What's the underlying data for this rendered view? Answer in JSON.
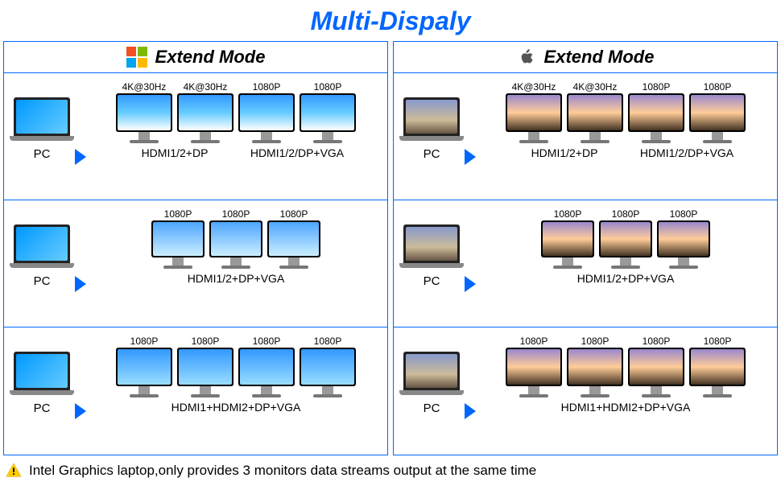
{
  "title": {
    "text": "Multi-Dispaly",
    "color": "#0066ff"
  },
  "border_color": "#0066ff",
  "arrow_color": "#0066ff",
  "columns": [
    {
      "os": "windows",
      "header": "Extend Mode",
      "laptop_bg": "linear-gradient(135deg,#0099ff,#66ccff)",
      "win_colors": [
        "#f25022",
        "#7fba00",
        "#00a4ef",
        "#ffb900"
      ],
      "rows": [
        {
          "groups": [
            {
              "monitors": [
                {
                  "label": "4K@30Hz",
                  "bg": "linear-gradient(180deg,#3399ff 0%,#66ccff 50%,#fff 100%)"
                },
                {
                  "label": "4K@30Hz",
                  "bg": "linear-gradient(180deg,#3399ff 0%,#66ccff 50%,#fff 100%)"
                }
              ],
              "port": "HDMI1/2+DP"
            },
            {
              "monitors": [
                {
                  "label": "1080P",
                  "bg": "linear-gradient(180deg,#3399ff 0%,#66ccff 50%,#fff 100%)"
                },
                {
                  "label": "1080P",
                  "bg": "linear-gradient(180deg,#3399ff 0%,#66ccff 50%,#fff 100%)"
                }
              ],
              "port": "HDMI1/2/DP+VGA"
            }
          ]
        },
        {
          "groups": [
            {
              "monitors": [
                {
                  "label": "1080P",
                  "bg": "linear-gradient(180deg,#4da6ff,#cceeff)"
                },
                {
                  "label": "1080P",
                  "bg": "linear-gradient(180deg,#4da6ff,#cceeff)"
                },
                {
                  "label": "1080P",
                  "bg": "linear-gradient(180deg,#4da6ff,#cceeff)"
                }
              ],
              "port": "HDMI1/2+DP+VGA"
            }
          ]
        },
        {
          "groups": [
            {
              "monitors": [
                {
                  "label": "1080P",
                  "bg": "linear-gradient(180deg,#3399ff,#99ddff)"
                },
                {
                  "label": "1080P",
                  "bg": "linear-gradient(180deg,#3399ff,#99ddff)"
                },
                {
                  "label": "1080P",
                  "bg": "linear-gradient(180deg,#3399ff,#99ddff)"
                },
                {
                  "label": "1080P",
                  "bg": "linear-gradient(180deg,#3399ff,#99ddff)"
                }
              ],
              "port": "HDMI1+HDMI2+DP+VGA"
            }
          ]
        }
      ]
    },
    {
      "os": "mac",
      "header": "Extend Mode",
      "laptop_bg": "linear-gradient(180deg,#8899cc 0%,#ccbb99 60%,#665544 100%)",
      "mac_color": "#555",
      "rows": [
        {
          "groups": [
            {
              "monitors": [
                {
                  "label": "4K@30Hz",
                  "bg": "linear-gradient(180deg,#9988cc 0%,#ffcc99 50%,#443322 100%)"
                },
                {
                  "label": "4K@30Hz",
                  "bg": "linear-gradient(180deg,#9988cc 0%,#ffcc99 50%,#443322 100%)"
                }
              ],
              "port": "HDMI1/2+DP"
            },
            {
              "monitors": [
                {
                  "label": "1080P",
                  "bg": "linear-gradient(180deg,#9988cc 0%,#ffcc99 50%,#443322 100%)"
                },
                {
                  "label": "1080P",
                  "bg": "linear-gradient(180deg,#9988cc 0%,#ffcc99 50%,#443322 100%)"
                }
              ],
              "port": "HDMI1/2/DP+VGA"
            }
          ]
        },
        {
          "groups": [
            {
              "monitors": [
                {
                  "label": "1080P",
                  "bg": "linear-gradient(180deg,#9988cc 0%,#ffcc99 50%,#443322 100%)"
                },
                {
                  "label": "1080P",
                  "bg": "linear-gradient(180deg,#9988cc 0%,#ffcc99 50%,#443322 100%)"
                },
                {
                  "label": "1080P",
                  "bg": "linear-gradient(180deg,#9988cc 0%,#ffcc99 50%,#443322 100%)"
                }
              ],
              "port": "HDMI1/2+DP+VGA"
            }
          ]
        },
        {
          "groups": [
            {
              "monitors": [
                {
                  "label": "1080P",
                  "bg": "linear-gradient(180deg,#9988cc 0%,#ffcc99 50%,#443322 100%)"
                },
                {
                  "label": "1080P",
                  "bg": "linear-gradient(180deg,#9988cc 0%,#ffcc99 50%,#443322 100%)"
                },
                {
                  "label": "1080P",
                  "bg": "linear-gradient(180deg,#9988cc 0%,#ffcc99 50%,#443322 100%)"
                },
                {
                  "label": "1080P",
                  "bg": "linear-gradient(180deg,#9988cc 0%,#ffcc99 50%,#443322 100%)"
                }
              ],
              "port": "HDMI1+HDMI2+DP+VGA"
            }
          ]
        }
      ]
    }
  ],
  "footer": {
    "icon": "⚠",
    "icon_color": "#ffcc00",
    "text": "Intel Graphics laptop,only provides 3 monitors data streams output at the same time"
  },
  "pc_label": "PC"
}
